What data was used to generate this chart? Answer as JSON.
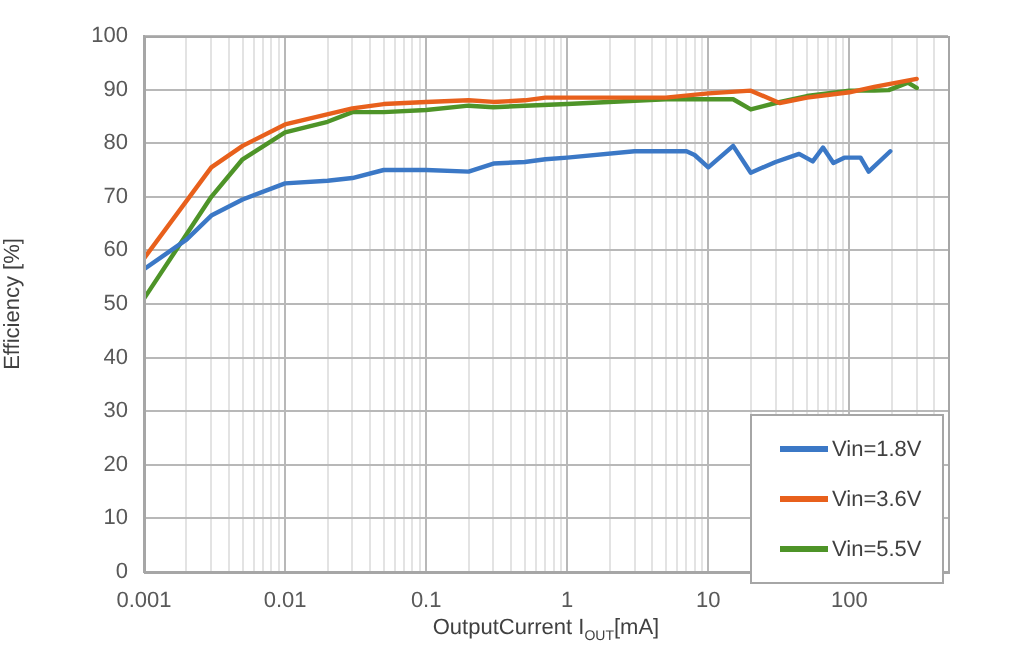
{
  "chart_data": {
    "type": "line",
    "xlabel": "OutputCurrent I$_{OUT}$[mA]",
    "ylabel": "Efficiency [%]",
    "xlim": [
      0.001,
      500
    ],
    "ylim": [
      0,
      100
    ],
    "log": "x",
    "grid": true,
    "legend": "bottom right",
    "marker": "none",
    "line_style": "solid",
    "xticks": [
      0.001,
      {
        "value": 0.002,
        "label": null
      },
      {
        "value": 0.003,
        "label": null
      },
      {
        "value": 0.004,
        "label": null
      },
      {
        "value": 0.005,
        "label": null
      },
      {
        "value": 0.006,
        "label": null
      },
      {
        "value": 0.007,
        "label": null
      },
      {
        "value": 0.008,
        "label": null
      },
      {
        "value": 0.009,
        "label": null
      },
      0.01,
      {
        "value": 0.02,
        "label": null
      },
      {
        "value": 0.03,
        "label": null
      },
      {
        "value": 0.04,
        "label": null
      },
      {
        "value": 0.05,
        "label": null
      },
      {
        "value": 0.06,
        "label": null
      },
      {
        "value": 0.07,
        "label": null
      },
      {
        "value": 0.08,
        "label": null
      },
      {
        "value": 0.09,
        "label": null
      },
      0.1,
      {
        "value": 0.2,
        "label": null
      },
      {
        "value": 0.3,
        "label": null
      },
      {
        "value": 0.4,
        "label": null
      },
      {
        "value": 0.5,
        "label": null
      },
      {
        "value": 0.6,
        "label": null
      },
      {
        "value": 0.7,
        "label": null
      },
      {
        "value": 0.8,
        "label": null
      },
      {
        "value": 0.9,
        "label": null
      },
      1,
      {
        "value": 2,
        "label": null
      },
      {
        "value": 3,
        "label": null
      },
      {
        "value": 4,
        "label": null
      },
      {
        "value": 5,
        "label": null
      },
      {
        "value": 6,
        "label": null
      },
      {
        "value": 7,
        "label": null
      },
      {
        "value": 8,
        "label": null
      },
      {
        "value": 9,
        "label": null
      },
      10,
      {
        "value": 20,
        "label": null
      },
      {
        "value": 30,
        "label": null
      },
      {
        "value": 40,
        "label": null
      },
      {
        "value": 50,
        "label": null
      },
      {
        "value": 60,
        "label": null
      },
      {
        "value": 70,
        "label": null
      },
      {
        "value": 80,
        "label": null
      },
      {
        "value": 90,
        "label": null
      },
      100,
      {
        "value": 200,
        "label": null
      },
      {
        "value": 300,
        "label": null
      },
      {
        "value": 400,
        "label": null
      }
    ],
    "yticks": [
      0,
      10,
      20,
      30,
      40,
      50,
      60,
      70,
      80,
      90,
      100
    ],
    "series": [
      {
        "name": "Vin=1.8V",
        "color": "#3b78c6",
        "x": [
          0.001,
          0.002,
          0.003,
          0.005,
          0.01,
          0.02,
          0.03,
          0.05,
          0.1,
          0.2,
          0.3,
          0.5,
          0.7,
          1,
          3,
          7,
          8,
          10,
          15,
          20,
          30,
          44,
          55,
          65,
          77,
          92,
          120,
          137,
          195
        ],
        "values": [
          56.5,
          62,
          66.5,
          69.5,
          72.5,
          73,
          73.5,
          75,
          75,
          74.7,
          76.2,
          76.5,
          77,
          77.3,
          78.5,
          78.5,
          77.8,
          75.5,
          79.5,
          74.5,
          76.5,
          78,
          76.6,
          79.2,
          76.3,
          77.3,
          77.3,
          74.7,
          78.5
        ]
      },
      {
        "name": "Vin=3.6V",
        "color": "#e8601c",
        "x": [
          0.001,
          0.003,
          0.005,
          0.01,
          0.03,
          0.05,
          0.1,
          0.2,
          0.3,
          0.5,
          0.7,
          1,
          5,
          10,
          20,
          32,
          50,
          100,
          150,
          300
        ],
        "values": [
          58.5,
          75.5,
          79.5,
          83.5,
          86.5,
          87.3,
          87.7,
          88,
          87.7,
          88,
          88.5,
          88.5,
          88.5,
          89.3,
          89.8,
          87.5,
          88.5,
          89.5,
          90.5,
          92
        ]
      },
      {
        "name": "Vin=5.5V",
        "color": "#4e9428",
        "x": [
          0.001,
          0.003,
          0.005,
          0.01,
          0.02,
          0.03,
          0.05,
          0.1,
          0.2,
          0.3,
          0.5,
          1,
          5,
          15,
          20,
          30,
          50,
          100,
          150,
          190,
          260,
          300
        ],
        "values": [
          51,
          70,
          77,
          82,
          84,
          85.8,
          85.8,
          86.2,
          87,
          86.7,
          87,
          87.3,
          88.2,
          88.2,
          86.3,
          87.5,
          88.8,
          89.8,
          89.8,
          89.9,
          91.3,
          90.3
        ]
      }
    ]
  }
}
